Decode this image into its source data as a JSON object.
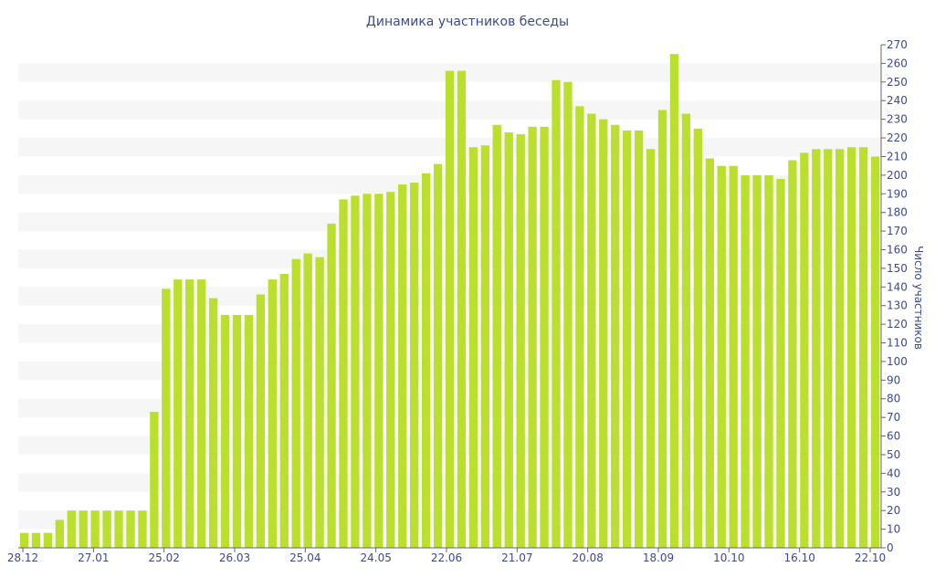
{
  "chart_data": {
    "type": "bar",
    "title": "Динамика участников беседы",
    "ylabel": "Число участников",
    "xlabel": "",
    "ylim": [
      0,
      270
    ],
    "y_ticks": [
      0,
      10,
      20,
      30,
      40,
      50,
      60,
      70,
      80,
      90,
      100,
      110,
      120,
      130,
      140,
      150,
      160,
      170,
      180,
      190,
      200,
      210,
      220,
      230,
      240,
      250,
      260,
      270
    ],
    "x_tick_labels": [
      "28.12",
      "27.01",
      "25.02",
      "26.03",
      "25.04",
      "24.05",
      "22.06",
      "21.07",
      "20.08",
      "18.09",
      "10.10",
      "16.10",
      "22.10"
    ],
    "y_axis_position": "right",
    "grid": "horizontal bands",
    "colors": {
      "bar": "#badf2f",
      "band": "#f6f6f6",
      "text": "#3d4a8a",
      "axis": "#666666"
    },
    "values": [
      8,
      8,
      8,
      15,
      20,
      20,
      20,
      20,
      20,
      20,
      20,
      73,
      139,
      144,
      144,
      144,
      134,
      125,
      125,
      125,
      136,
      144,
      147,
      155,
      158,
      156,
      174,
      187,
      189,
      190,
      190,
      191,
      195,
      196,
      201,
      206,
      256,
      256,
      215,
      216,
      227,
      223,
      222,
      226,
      226,
      251,
      250,
      237,
      233,
      230,
      227,
      224,
      224,
      214,
      235,
      265,
      233,
      225,
      209,
      205,
      205,
      200,
      200,
      200,
      198,
      208,
      212,
      214,
      214,
      214,
      215,
      215,
      210
    ]
  }
}
